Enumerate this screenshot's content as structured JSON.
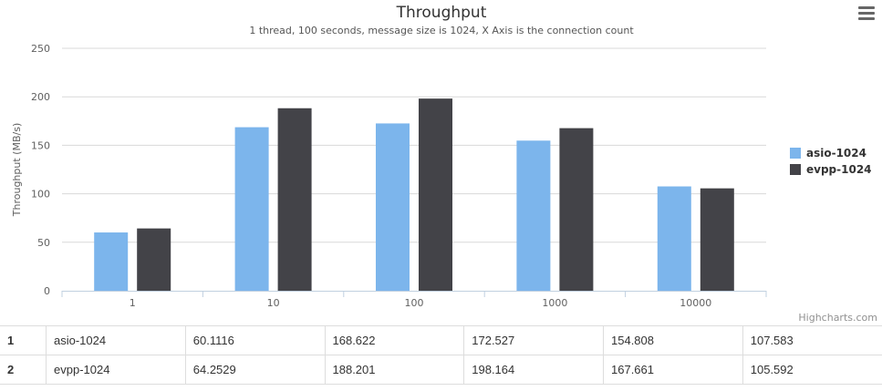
{
  "chart_data": {
    "type": "bar",
    "title": "Throughput",
    "subtitle": "1 thread, 100 seconds, message size is 1024, X Axis is the connection count",
    "xlabel": "",
    "ylabel": "Throughput (MB/s)",
    "categories": [
      "1",
      "10",
      "100",
      "1000",
      "10000"
    ],
    "ylim": [
      0,
      250
    ],
    "yticks": [
      0,
      50,
      100,
      150,
      200,
      250
    ],
    "grid": true,
    "legend_position": "right",
    "series": [
      {
        "name": "asio-1024",
        "color": "#7cb5ec",
        "values": [
          60.1116,
          168.622,
          172.527,
          154.808,
          107.583
        ]
      },
      {
        "name": "evpp-1024",
        "color": "#434348",
        "values": [
          64.2529,
          188.201,
          198.164,
          167.661,
          105.592
        ]
      }
    ]
  },
  "credits": "Highcharts.com",
  "menu_icon": "hamburger-menu-icon",
  "table": {
    "rows": [
      {
        "index": "1",
        "name": "asio-1024",
        "values": [
          "60.1116",
          "168.622",
          "172.527",
          "154.808",
          "107.583"
        ]
      },
      {
        "index": "2",
        "name": "evpp-1024",
        "values": [
          "64.2529",
          "188.201",
          "198.164",
          "167.661",
          "105.592"
        ]
      }
    ]
  }
}
